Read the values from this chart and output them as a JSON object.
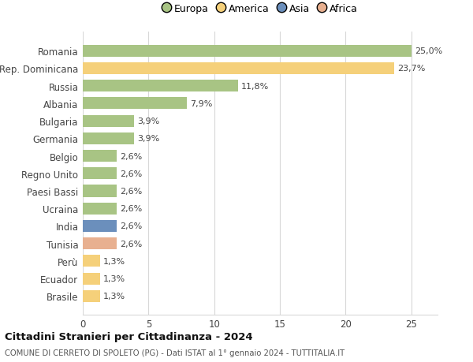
{
  "categories": [
    "Romania",
    "Rep. Dominicana",
    "Russia",
    "Albania",
    "Bulgaria",
    "Germania",
    "Belgio",
    "Regno Unito",
    "Paesi Bassi",
    "Ucraina",
    "India",
    "Tunisia",
    "Perù",
    "Ecuador",
    "Brasile"
  ],
  "values": [
    25.0,
    23.7,
    11.8,
    7.9,
    3.9,
    3.9,
    2.6,
    2.6,
    2.6,
    2.6,
    2.6,
    2.6,
    1.3,
    1.3,
    1.3
  ],
  "labels": [
    "25,0%",
    "23,7%",
    "11,8%",
    "7,9%",
    "3,9%",
    "3,9%",
    "2,6%",
    "2,6%",
    "2,6%",
    "2,6%",
    "2,6%",
    "2,6%",
    "1,3%",
    "1,3%",
    "1,3%"
  ],
  "colors": [
    "#a8c484",
    "#f5d07a",
    "#a8c484",
    "#a8c484",
    "#a8c484",
    "#a8c484",
    "#a8c484",
    "#a8c484",
    "#a8c484",
    "#a8c484",
    "#6b8fbc",
    "#e8b090",
    "#f5d07a",
    "#f5d07a",
    "#f5d07a"
  ],
  "legend_labels": [
    "Europa",
    "America",
    "Asia",
    "Africa"
  ],
  "legend_colors": [
    "#a8c484",
    "#f5d07a",
    "#6b8fbc",
    "#e8b090"
  ],
  "title": "Cittadini Stranieri per Cittadinanza - 2024",
  "subtitle": "COMUNE DI CERRETO DI SPOLETO (PG) - Dati ISTAT al 1° gennaio 2024 - TUTTITALIA.IT",
  "xlim": [
    0,
    27
  ],
  "xticks": [
    0,
    5,
    10,
    15,
    20,
    25
  ],
  "background_color": "#ffffff",
  "grid_color": "#d8d8d8"
}
